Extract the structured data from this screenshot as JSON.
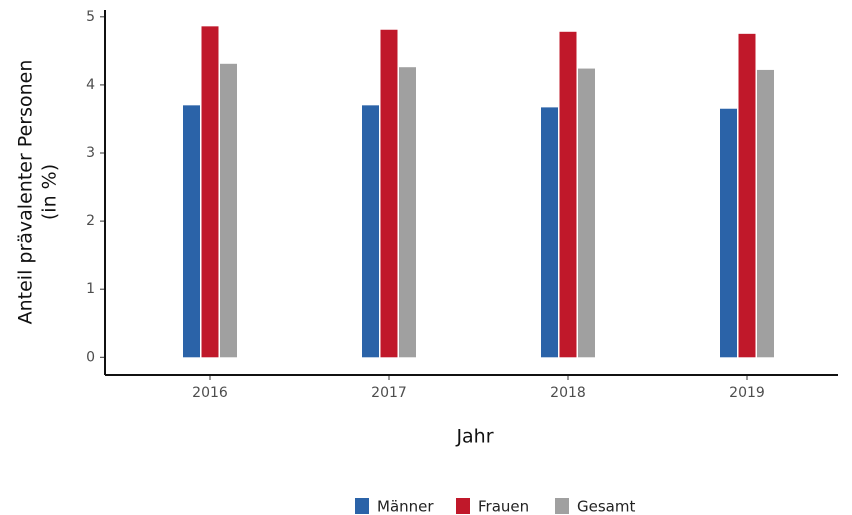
{
  "chart_data": {
    "type": "bar",
    "categories": [
      "2016",
      "2017",
      "2018",
      "2019"
    ],
    "series": [
      {
        "name": "Männer",
        "color": "#2b63a8",
        "values": [
          3.7,
          3.7,
          3.67,
          3.65
        ]
      },
      {
        "name": "Frauen",
        "color": "#c0182a",
        "values": [
          4.86,
          4.81,
          4.78,
          4.75
        ]
      },
      {
        "name": "Gesamt",
        "color": "#a0a0a0",
        "values": [
          4.31,
          4.26,
          4.24,
          4.22
        ]
      }
    ],
    "ylim": [
      -0.26,
      5.1
    ],
    "yticks": [
      0,
      1,
      2,
      3,
      4,
      5
    ],
    "xlabel": "Jahr",
    "ylabel": [
      "Anteil prävalenter Personen",
      "(in %)"
    ],
    "legend": "bottom",
    "grid": false
  }
}
